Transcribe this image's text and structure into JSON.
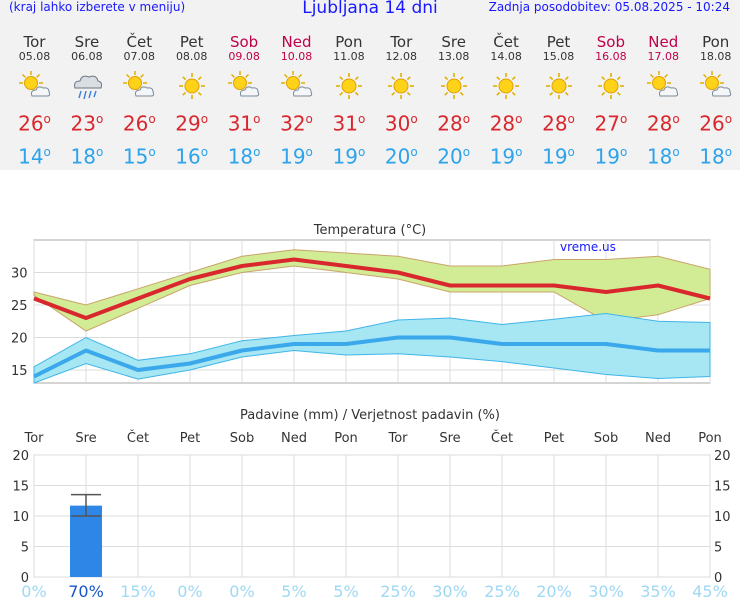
{
  "header": {
    "note": "(kraj lahko izberete v meniju)",
    "title": "Ljubljana 14 dni",
    "updated": "Zadnja posodobitev: 05.08.2025 - 10:24"
  },
  "days": [
    {
      "name": "Tor",
      "date": "05.08",
      "weekend": false,
      "icon": "sun-cloud-icon",
      "tmax": 26,
      "tmin": 14
    },
    {
      "name": "Sre",
      "date": "06.08",
      "weekend": false,
      "icon": "rain-cloud-icon",
      "tmax": 23,
      "tmin": 18
    },
    {
      "name": "Čet",
      "date": "07.08",
      "weekend": false,
      "icon": "sun-cloud-icon",
      "tmax": 26,
      "tmin": 15
    },
    {
      "name": "Pet",
      "date": "08.08",
      "weekend": false,
      "icon": "sun-icon",
      "tmax": 29,
      "tmin": 16
    },
    {
      "name": "Sob",
      "date": "09.08",
      "weekend": true,
      "icon": "sun-cloud-icon",
      "tmax": 31,
      "tmin": 18
    },
    {
      "name": "Ned",
      "date": "10.08",
      "weekend": true,
      "icon": "sun-cloud-icon",
      "tmax": 32,
      "tmin": 19
    },
    {
      "name": "Pon",
      "date": "11.08",
      "weekend": false,
      "icon": "sun-icon",
      "tmax": 31,
      "tmin": 19
    },
    {
      "name": "Tor",
      "date": "12.08",
      "weekend": false,
      "icon": "sun-icon",
      "tmax": 30,
      "tmin": 20
    },
    {
      "name": "Sre",
      "date": "13.08",
      "weekend": false,
      "icon": "sun-icon",
      "tmax": 28,
      "tmin": 20
    },
    {
      "name": "Čet",
      "date": "14.08",
      "weekend": false,
      "icon": "sun-icon",
      "tmax": 28,
      "tmin": 19
    },
    {
      "name": "Pet",
      "date": "15.08",
      "weekend": false,
      "icon": "sun-icon",
      "tmax": 28,
      "tmin": 19
    },
    {
      "name": "Sob",
      "date": "16.08",
      "weekend": true,
      "icon": "sun-icon",
      "tmax": 27,
      "tmin": 19
    },
    {
      "name": "Ned",
      "date": "17.08",
      "weekend": true,
      "icon": "sun-cloud-icon",
      "tmax": 28,
      "tmin": 18
    },
    {
      "name": "Pon",
      "date": "18.08",
      "weekend": false,
      "icon": "sun-cloud-icon",
      "tmax": 26,
      "tmin": 18
    }
  ],
  "degree_mark": "o",
  "colors": {
    "blue_text": "#1818ff",
    "weekend": "#c0004a",
    "tmax": "#d8282e",
    "tmin": "#2ca3ea",
    "max_band": "#d2ec96",
    "min_band": "#a7e6f3",
    "min_band_edge": "#3fb5e8",
    "min_line": "#3aa8ea",
    "precip_bar": "#2e86e6",
    "prob_text": "#9fd8f3"
  },
  "chart_data": [
    {
      "type": "line",
      "title": "Temperatura (°C)",
      "watermark": "vreme.us",
      "ylim": [
        13,
        35
      ],
      "yticks": [
        15,
        20,
        25,
        30
      ],
      "series": [
        {
          "values": [
            26,
            23,
            26,
            29,
            31,
            32,
            31,
            30,
            28,
            28,
            28,
            27,
            28,
            26
          ],
          "band_low": [
            26.5,
            21,
            24.5,
            28,
            30,
            31,
            30,
            29,
            27,
            27,
            27,
            22.5,
            23.5,
            26
          ],
          "band_high": [
            27,
            25,
            27.5,
            30,
            32.5,
            33.5,
            33,
            32.5,
            31,
            31,
            32,
            32,
            32.5,
            30.5
          ]
        },
        {
          "values": [
            14,
            18,
            15,
            16,
            18,
            19,
            19,
            20,
            20,
            19,
            19,
            19,
            18,
            18
          ],
          "band_low": [
            13,
            16,
            13.6,
            15,
            17,
            18,
            17.3,
            17.5,
            17,
            16.3,
            15.3,
            14.3,
            13.7,
            14
          ],
          "band_high": [
            15.5,
            20,
            16.5,
            17.5,
            19.5,
            20.3,
            21,
            22.7,
            23,
            22,
            22.8,
            23.7,
            22.5,
            22.3
          ]
        }
      ]
    },
    {
      "type": "bar",
      "title": "Padavine (mm) / Verjetnost padavin (%)",
      "ylim": [
        0,
        20
      ],
      "yticks": [
        0,
        5,
        10,
        15,
        20
      ],
      "categories": [
        "Tor",
        "Sre",
        "Čet",
        "Pet",
        "Sob",
        "Ned",
        "Pon",
        "Tor",
        "Sre",
        "Čet",
        "Pet",
        "Sob",
        "Ned",
        "Pon"
      ],
      "weekend": [
        false,
        false,
        false,
        false,
        true,
        true,
        false,
        false,
        false,
        false,
        false,
        true,
        true,
        false
      ],
      "values": [
        0,
        11.7,
        0,
        0,
        0,
        0,
        0,
        0,
        0,
        0,
        0,
        0,
        0,
        0
      ],
      "error_low": [
        0,
        10,
        0,
        0,
        0,
        0,
        0,
        0,
        0,
        0,
        0,
        0,
        0,
        0
      ],
      "error_high": [
        0,
        13.5,
        0,
        0,
        0,
        0,
        0,
        0,
        0,
        0,
        0,
        0,
        0,
        0
      ],
      "probability": [
        "0%",
        "70%",
        "15%",
        "0%",
        "0%",
        "5%",
        "5%",
        "25%",
        "30%",
        "25%",
        "20%",
        "30%",
        "35%",
        "45%"
      ]
    }
  ]
}
